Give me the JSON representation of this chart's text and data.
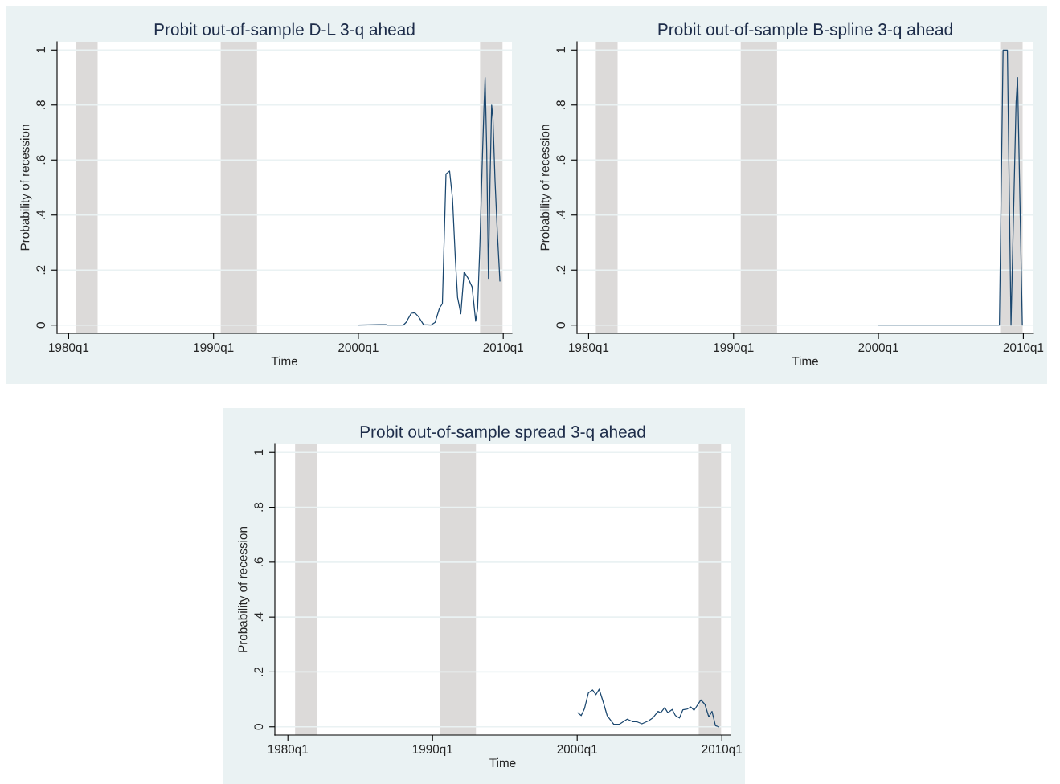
{
  "chart_data": [
    {
      "type": "line",
      "title": "Probit out-of-sample D-L 3-q ahead",
      "xlabel": "Time",
      "ylabel": "Probability of recession",
      "xlim": [
        "1979-03-15",
        "2010-08-08"
      ],
      "xticks": [
        {
          "value": "1980-01-01",
          "label": "1980q1"
        },
        {
          "value": "1990-01-01",
          "label": "1990q1"
        },
        {
          "value": "2000-01-01",
          "label": "2000q1"
        },
        {
          "value": "2010-01-01",
          "label": "2010q1"
        }
      ],
      "ylim": [
        -0.03,
        1.03
      ],
      "yticks": [
        {
          "value": 0,
          "label": "0"
        },
        {
          "value": 0.2,
          "label": ".2"
        },
        {
          "value": 0.4,
          "label": ".4"
        },
        {
          "value": 0.6,
          "label": ".6"
        },
        {
          "value": 0.8,
          "label": ".8"
        },
        {
          "value": 1,
          "label": "1"
        }
      ],
      "grid": "y",
      "bands": [
        {
          "axis": "x",
          "from": "1980-07-01",
          "to": "1982-01-01",
          "color": "#dcdad9"
        },
        {
          "axis": "x",
          "from": "1990-07-01",
          "to": "1993-01-01",
          "color": "#dcdad9"
        },
        {
          "axis": "x",
          "from": "2008-05-27",
          "to": "2009-12-14",
          "color": "#dcdad9"
        }
      ],
      "series": [
        {
          "color": "#1a476f",
          "x": [
            "2000-01-01",
            "2001-05-27",
            "2001-11-25",
            "2002-01-01",
            "2003-02-06",
            "2003-04-20",
            "2003-08-26",
            "2003-11-25",
            "2004-02-24",
            "2004-07-01",
            "2005-01-01",
            "2005-04-20",
            "2005-08-08",
            "2005-10-20",
            "2006-01-19",
            "2006-04-20",
            "2006-07-02",
            "2006-09-13",
            "2006-11-07",
            "2007-01-27",
            "2007-04-20",
            "2007-08-08",
            "2007-11-07",
            "2008-02-06",
            "2008-03-25",
            "2008-05-22",
            "2008-07-27",
            "2008-09-05",
            "2008-10-01",
            "2008-11-10",
            "2008-12-24",
            "2009-02-03",
            "2009-03-15",
            "2009-04-17",
            "2009-06-07",
            "2009-08-04",
            "2009-10-09"
          ],
          "values": [
            0,
            0.002,
            0.002,
            0,
            0,
            0.01,
            0.043,
            0.045,
            0.031,
            0.002,
            0,
            0.01,
            0.062,
            0.078,
            0.55,
            0.56,
            0.46,
            0.237,
            0.1,
            0.041,
            0.193,
            0.168,
            0.139,
            0.014,
            0.06,
            0.29,
            0.62,
            0.8,
            0.9,
            0.64,
            0.17,
            0.53,
            0.8,
            0.75,
            0.53,
            0.34,
            0.16
          ]
        }
      ]
    },
    {
      "type": "line",
      "title": "Probit out-of-sample B-spline 3-q ahead",
      "xlabel": "Time",
      "ylabel": "Probability of recession",
      "xlim": [
        "1979-03-15",
        "2010-09-13"
      ],
      "xticks": [
        {
          "value": "1980-01-01",
          "label": "1980q1"
        },
        {
          "value": "1990-01-01",
          "label": "1990q1"
        },
        {
          "value": "2000-01-01",
          "label": "2000q1"
        },
        {
          "value": "2010-01-01",
          "label": "2010q1"
        }
      ],
      "ylim": [
        -0.03,
        1.03
      ],
      "yticks": [
        {
          "value": 0,
          "label": "0"
        },
        {
          "value": 0.2,
          "label": ".2"
        },
        {
          "value": 0.4,
          "label": ".4"
        },
        {
          "value": 0.6,
          "label": ".6"
        },
        {
          "value": 0.8,
          "label": ".8"
        },
        {
          "value": 1,
          "label": "1"
        }
      ],
      "grid": "y",
      "bands": [
        {
          "axis": "x",
          "from": "1980-07-01",
          "to": "1982-01-01",
          "color": "#dcdad9"
        },
        {
          "axis": "x",
          "from": "1990-07-01",
          "to": "1993-01-01",
          "color": "#dcdad9"
        },
        {
          "axis": "x",
          "from": "2008-05-27",
          "to": "2009-12-14",
          "color": "#dcdad9"
        }
      ],
      "series": [
        {
          "color": "#1a476f",
          "x": [
            "2000-01-01",
            "2008-05-08",
            "2008-08-08",
            "2008-11-25",
            "2009-02-24",
            "2009-07-02",
            "2009-08-08",
            "2009-12-06"
          ],
          "values": [
            0,
            0,
            1.0,
            1.0,
            0,
            0.81,
            0.9,
            0
          ]
        }
      ]
    },
    {
      "type": "line",
      "title": "Probit out-of-sample spread 3-q ahead",
      "xlabel": "Time",
      "ylabel": "Probability of recession",
      "xlim": [
        "1979-02-06",
        "2010-08-08"
      ],
      "xticks": [
        {
          "value": "1980-01-01",
          "label": "1980q1"
        },
        {
          "value": "1990-01-01",
          "label": "1990q1"
        },
        {
          "value": "2000-01-01",
          "label": "2000q1"
        },
        {
          "value": "2010-01-01",
          "label": "2010q1"
        }
      ],
      "ylim": [
        -0.03,
        1.03
      ],
      "yticks": [
        {
          "value": 0,
          "label": "0"
        },
        {
          "value": 0.2,
          "label": ".2"
        },
        {
          "value": 0.4,
          "label": ".4"
        },
        {
          "value": 0.6,
          "label": ".6"
        },
        {
          "value": 0.8,
          "label": ".8"
        },
        {
          "value": 1,
          "label": "1"
        }
      ],
      "grid": "y",
      "bands": [
        {
          "axis": "x",
          "from": "1980-07-01",
          "to": "1982-01-01",
          "color": "#dcdad9"
        },
        {
          "axis": "x",
          "from": "1990-07-01",
          "to": "1993-01-01",
          "color": "#dcdad9"
        },
        {
          "axis": "x",
          "from": "2008-05-27",
          "to": "2009-12-14",
          "color": "#dcdad9"
        }
      ],
      "series": [
        {
          "color": "#1a476f",
          "x": [
            "2000-01-16",
            "2000-04-12",
            "2000-07-01",
            "2000-10-12",
            "2001-01-23",
            "2001-04-20",
            "2001-07-09",
            "2001-10-20",
            "2002-01-27",
            "2002-07-13",
            "2002-11-25",
            "2003-06-18",
            "2003-10-31",
            "2004-02-06",
            "2004-06-24",
            "2004-12-09",
            "2005-03-22",
            "2005-08-04",
            "2005-10-09",
            "2006-01-19",
            "2006-04-10",
            "2006-07-27",
            "2006-10-16",
            "2007-01-27",
            "2007-04-24",
            "2007-08-15",
            "2007-11-11",
            "2008-01-30",
            "2008-07-20",
            "2008-10-30",
            "2009-02-06",
            "2009-04-28",
            "2009-07-24",
            "2009-10-20"
          ],
          "values": [
            0.051,
            0.041,
            0.065,
            0.124,
            0.134,
            0.117,
            0.137,
            0.09,
            0.041,
            0.009,
            0.009,
            0.028,
            0.019,
            0.019,
            0.011,
            0.022,
            0.032,
            0.056,
            0.051,
            0.07,
            0.051,
            0.063,
            0.041,
            0.032,
            0.062,
            0.065,
            0.072,
            0.06,
            0.098,
            0.082,
            0.036,
            0.056,
            0.004,
            0.0
          ]
        }
      ]
    }
  ]
}
